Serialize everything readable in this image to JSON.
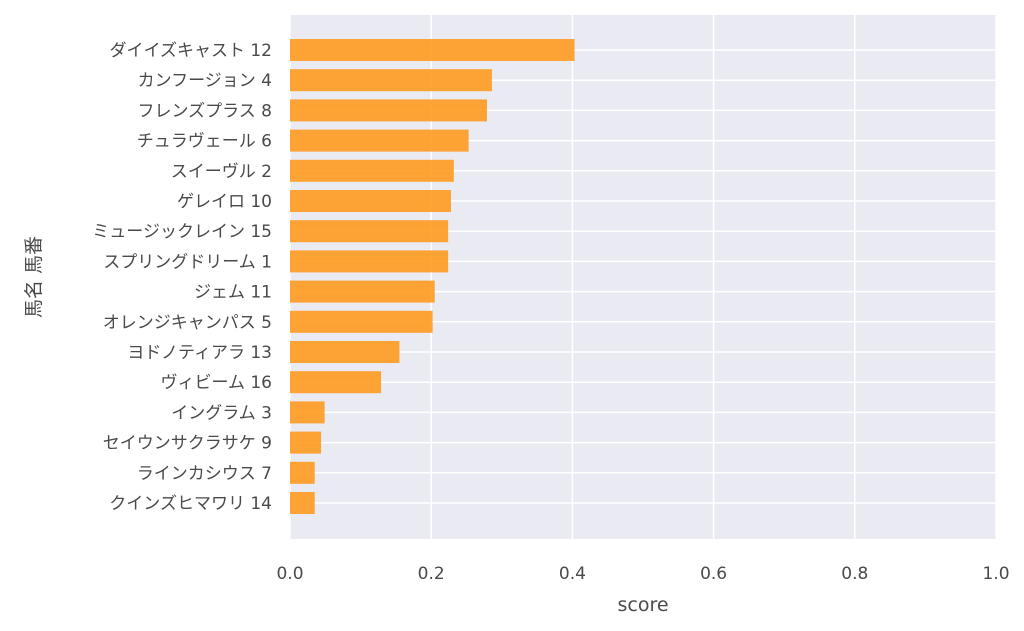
{
  "chart_data": {
    "type": "bar",
    "orientation": "horizontal",
    "xlabel": "score",
    "ylabel": "馬名 馬番",
    "xlim": [
      0.0,
      1.0
    ],
    "xticks": [
      "0.0",
      "0.2",
      "0.4",
      "0.6",
      "0.8",
      "1.0"
    ],
    "grid": true,
    "bar_color": "#ff9a1f",
    "background_color": "#eaeaf2",
    "categories": [
      "ダイイズキャスト 12",
      "カンフージョン 4",
      "フレンズプラス 8",
      "チュラヴェール 6",
      "スイーヴル 2",
      "ゲレイロ 10",
      "ミュージックレイン 15",
      "スプリングドリーム 1",
      "ジェム 11",
      "オレンジキャンパス 5",
      "ヨドノティアラ 13",
      "ヴィビーム 16",
      "イングラム 3",
      "セイウンサクラサケ 9",
      "ラインカシウス 7",
      "クインズヒマワリ 14"
    ],
    "values": [
      0.403,
      0.286,
      0.279,
      0.253,
      0.232,
      0.228,
      0.224,
      0.224,
      0.205,
      0.202,
      0.155,
      0.129,
      0.049,
      0.044,
      0.035,
      0.035
    ]
  }
}
